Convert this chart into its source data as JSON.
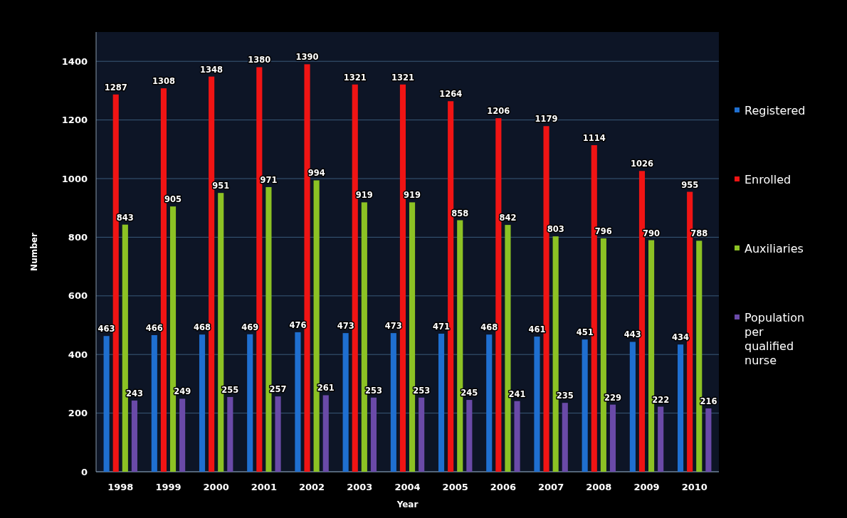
{
  "chart_data": {
    "type": "bar",
    "xlabel": "Year",
    "ylabel": "Number",
    "categories": [
      "1998",
      "1999",
      "2000",
      "2001",
      "2002",
      "2003",
      "2004",
      "2005",
      "2006",
      "2007",
      "2008",
      "2009",
      "2010"
    ],
    "series": [
      {
        "name": "Registered",
        "color": "#1f6fd0",
        "values": [
          463,
          466,
          468,
          469,
          476,
          473,
          473,
          471,
          468,
          461,
          451,
          443,
          434
        ]
      },
      {
        "name": "Enrolled",
        "color": "#f01414",
        "values": [
          1287,
          1308,
          1348,
          1380,
          1390,
          1321,
          1321,
          1264,
          1206,
          1179,
          1114,
          1026,
          955
        ]
      },
      {
        "name": "Auxiliaries",
        "color": "#8cc224",
        "values": [
          843,
          905,
          951,
          971,
          994,
          919,
          919,
          858,
          842,
          803,
          796,
          790,
          788
        ]
      },
      {
        "name": "Population per qualified nurse",
        "color": "#6a4aa8",
        "values": [
          243,
          249,
          255,
          257,
          261,
          253,
          253,
          245,
          241,
          235,
          229,
          222,
          216
        ]
      }
    ],
    "ylim": [
      0,
      1500
    ],
    "yticks": [
      0,
      200,
      400,
      600,
      800,
      1000,
      1200,
      1400
    ],
    "grid": "y",
    "legend": "right",
    "data_labels": true
  }
}
